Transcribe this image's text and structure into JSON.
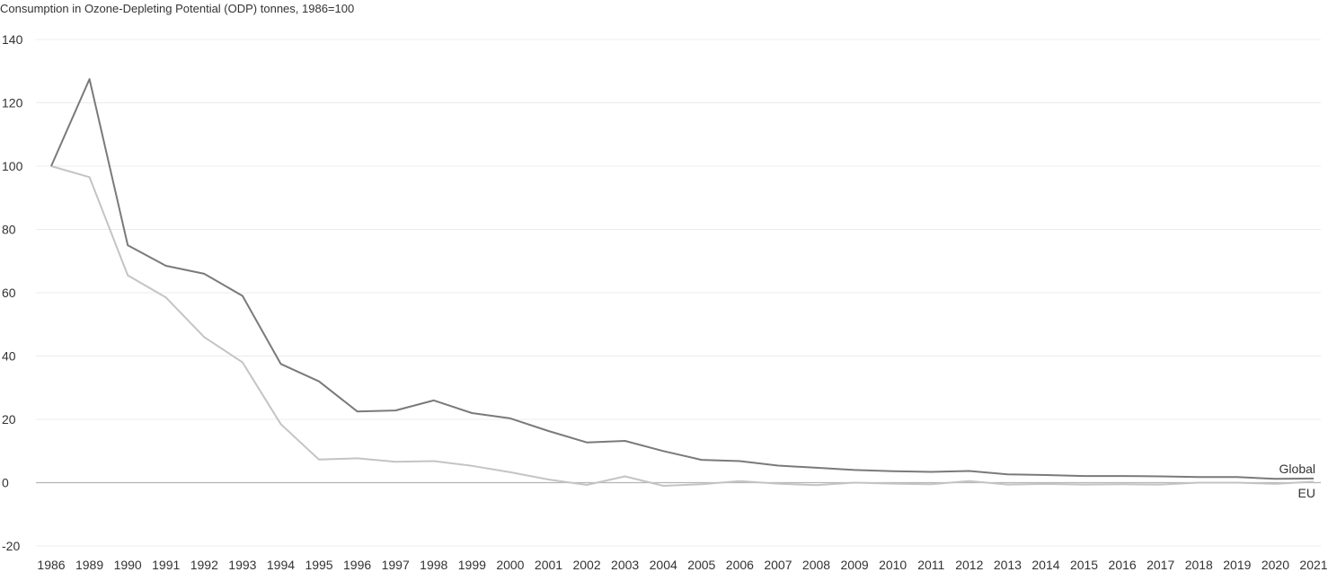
{
  "chart_data": {
    "type": "line",
    "title": "Consumption in Ozone-Depleting Potential (ODP) tonnes, 1986=100",
    "xlabel": "",
    "ylabel": "",
    "ylim": [
      -20,
      140
    ],
    "yticks": [
      140,
      120,
      100,
      80,
      60,
      40,
      20,
      0,
      -20
    ],
    "grid": true,
    "legend": "inline-right",
    "categories": [
      "1986",
      "1989",
      "1990",
      "1991",
      "1992",
      "1993",
      "1994",
      "1995",
      "1996",
      "1997",
      "1998",
      "1999",
      "2000",
      "2001",
      "2002",
      "2003",
      "2004",
      "2005",
      "2006",
      "2007",
      "2008",
      "2009",
      "2010",
      "2011",
      "2012",
      "2013",
      "2014",
      "2015",
      "2016",
      "2017",
      "2018",
      "2019",
      "2020",
      "2021"
    ],
    "series": [
      {
        "name": "Global",
        "color": "#7a7a7a",
        "values": [
          100,
          127.5,
          75,
          68.5,
          66,
          59,
          37.5,
          32,
          22.5,
          22.8,
          26,
          22,
          20.3,
          16.3,
          12.7,
          13.2,
          10,
          7.2,
          6.8,
          5.4,
          4.7,
          4,
          3.6,
          3.4,
          3.7,
          2.6,
          2.4,
          2.1,
          2.1,
          2,
          1.8,
          1.8,
          1.2,
          1.3
        ]
      },
      {
        "name": "EU",
        "color": "#c4c4c4",
        "values": [
          100,
          96.5,
          65.5,
          58.5,
          46,
          38,
          18.5,
          7.3,
          7.7,
          6.6,
          6.8,
          5.3,
          3.3,
          1,
          -0.7,
          2,
          -1,
          -0.5,
          0.5,
          -0.3,
          -0.8,
          0,
          -0.3,
          -0.5,
          0.5,
          -0.6,
          -0.4,
          -0.6,
          -0.5,
          -0.6,
          0,
          0,
          -0.4,
          0.3
        ]
      }
    ]
  }
}
